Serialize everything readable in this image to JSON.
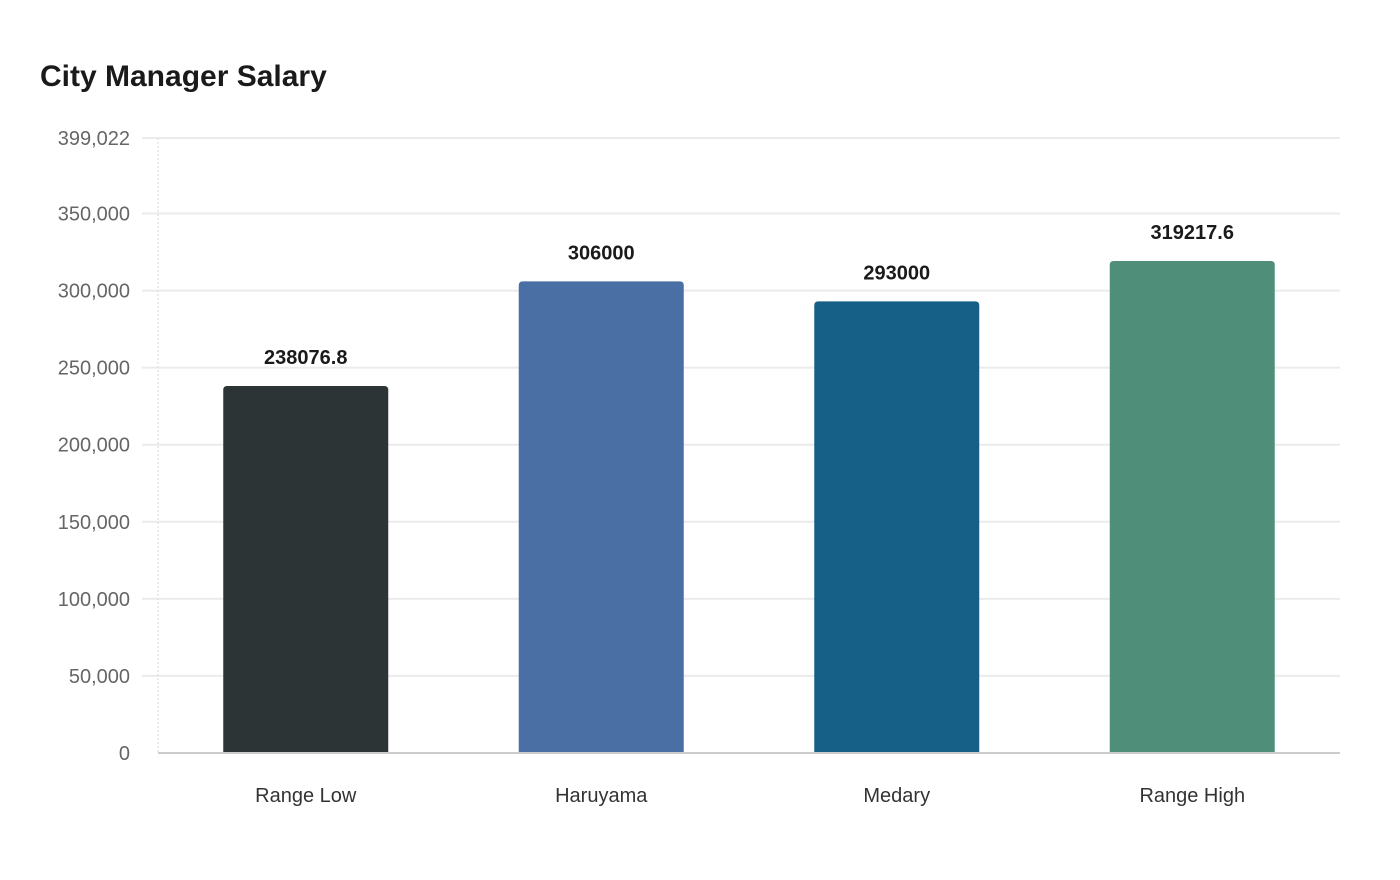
{
  "chart_data": {
    "type": "bar",
    "title": "City Manager Salary",
    "xlabel": "",
    "ylabel": "",
    "categories": [
      "Range Low",
      "Haruyama",
      "Medary",
      "Range High"
    ],
    "values": [
      238076.8,
      306000,
      293000,
      319217.6
    ],
    "data_labels": [
      "238076.8",
      "306000",
      "293000",
      "319217.6"
    ],
    "colors": [
      "#2d3436",
      "#4a6fa5",
      "#166088",
      "#4f8f7a"
    ],
    "ylim": [
      0,
      399022
    ],
    "yticks": [
      0,
      50000,
      100000,
      150000,
      200000,
      250000,
      300000,
      350000,
      399022
    ],
    "ytick_labels": [
      "0",
      "50,000",
      "100,000",
      "150,000",
      "200,000",
      "250,000",
      "300,000",
      "350,000",
      "399,022"
    ],
    "grid": true,
    "legend": "none"
  }
}
